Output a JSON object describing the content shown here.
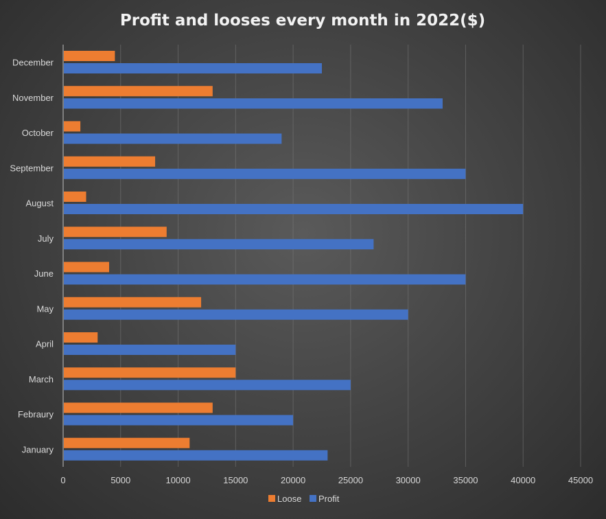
{
  "chart_data": {
    "type": "bar",
    "orientation": "horizontal",
    "title": "Profit and looses every month in 2022($)",
    "categories": [
      "January",
      "Febraury",
      "March",
      "April",
      "May",
      "June",
      "July",
      "August",
      "September",
      "October",
      "November",
      "December"
    ],
    "series": [
      {
        "name": "Loose",
        "color": "#ed7d31",
        "values": [
          11000,
          13000,
          15000,
          3000,
          12000,
          4000,
          9000,
          2000,
          8000,
          1500,
          13000,
          4500
        ]
      },
      {
        "name": "Profit",
        "color": "#4472c4",
        "values": [
          23000,
          20000,
          25000,
          15000,
          30000,
          35000,
          27000,
          40000,
          35000,
          19000,
          33000,
          22500
        ]
      }
    ],
    "xlim": [
      0,
      45000
    ],
    "x_ticks": [
      "0",
      "5000",
      "10000",
      "15000",
      "20000",
      "25000",
      "30000",
      "35000",
      "40000",
      "45000"
    ],
    "grid": "vertical",
    "legend_position": "bottom",
    "xlabel": "",
    "ylabel": ""
  }
}
